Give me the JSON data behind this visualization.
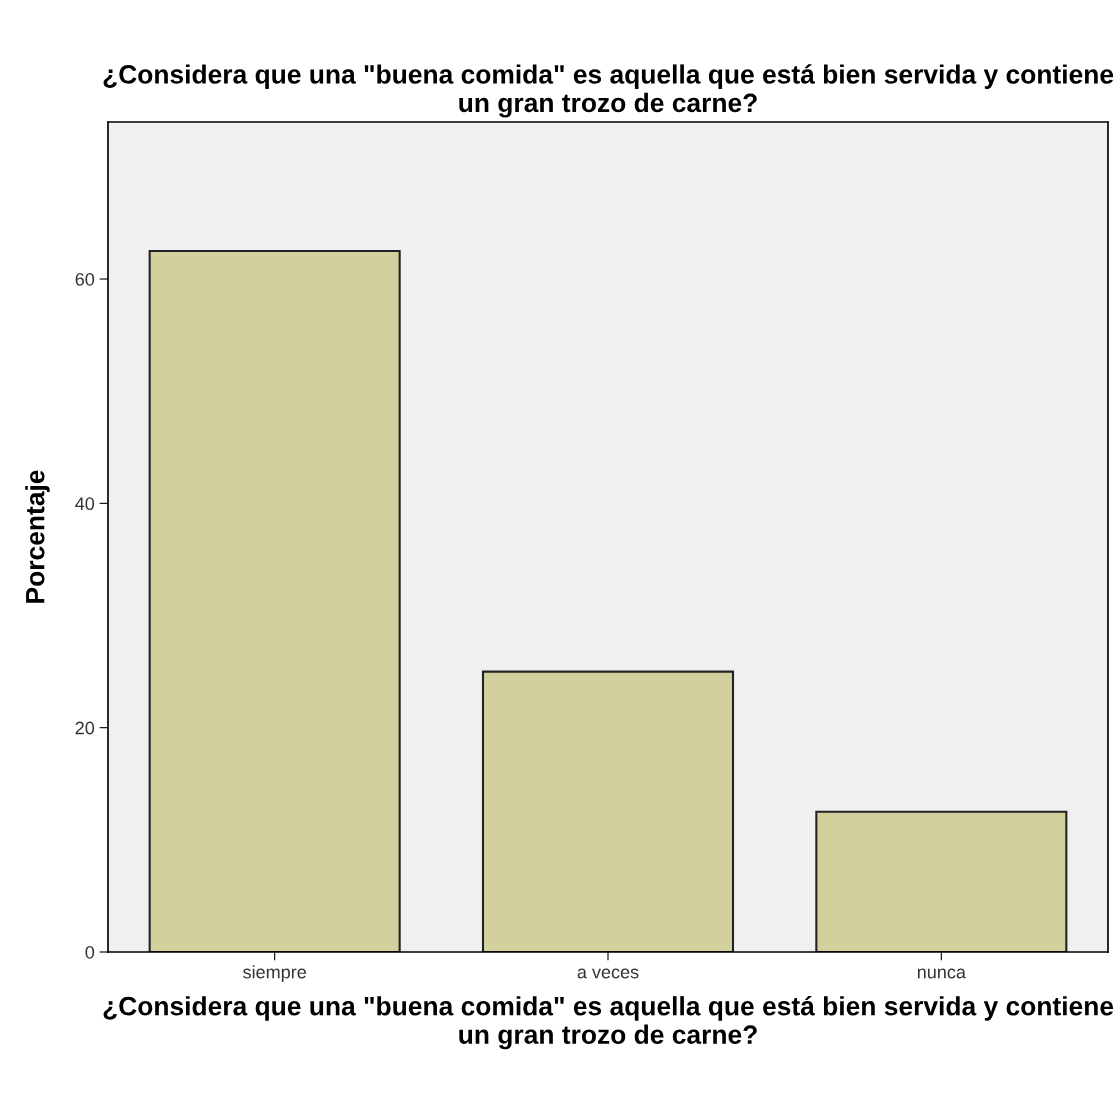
{
  "chart_data": {
    "type": "bar",
    "title": "¿Considera que una \"buena comida\" es aquella que está bien servida y contiene un gran trozo de carne?",
    "xlabel": "¿Considera que una \"buena comida\" es aquella que está bien servida y contiene un gran trozo de carne?",
    "ylabel": "Porcentaje",
    "categories": [
      "siempre",
      "a veces",
      "nunca"
    ],
    "values": [
      62.5,
      25.0,
      12.5
    ],
    "color": "#d2d09c",
    "ylim": [
      0,
      74
    ],
    "yticks": [
      0,
      20,
      40,
      60
    ],
    "grid": false,
    "legend": false
  }
}
